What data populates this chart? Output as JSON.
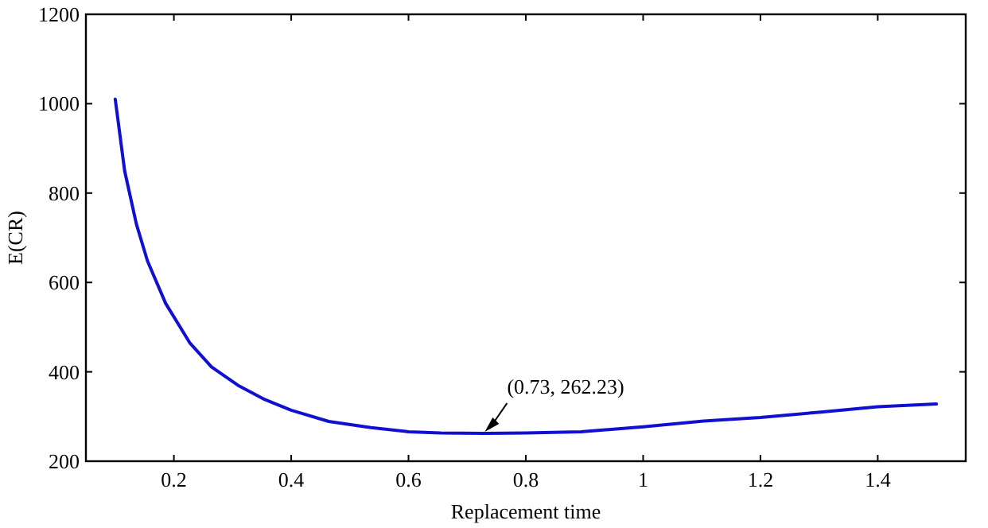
{
  "chart_data": {
    "type": "line",
    "xlabel": "Replacement time",
    "ylabel": "E(CR)",
    "xlim": [
      0.05,
      1.55
    ],
    "xticks": [
      0.2,
      0.4,
      0.6,
      0.8,
      {
        "value": 1,
        "label": "1"
      },
      1.2,
      1.4
    ],
    "ylim": [
      200,
      1200
    ],
    "yticks": [
      200,
      400,
      600,
      800,
      1000,
      1200
    ],
    "grid": false,
    "marker": "none",
    "line_style": "solid",
    "x": [
      0.1,
      0.116,
      0.136,
      0.155,
      0.186,
      0.227,
      0.264,
      0.309,
      0.355,
      0.4,
      0.464,
      0.536,
      0.6,
      0.655,
      0.73,
      0.8,
      0.894,
      1.0,
      1.103,
      1.2,
      1.303,
      1.4,
      1.5
    ],
    "series": [
      {
        "color": "#1010d0",
        "values": [
          1010,
          850,
          731,
          648,
          553,
          465,
          411,
          370,
          338,
          314,
          289,
          275,
          266,
          263,
          262.23,
          263,
          266,
          277,
          290,
          298,
          310,
          322,
          328
        ]
      }
    ],
    "annotations": [
      {
        "text": "(0.73, 262.23)",
        "x": 0.73,
        "y": 262.23
      }
    ]
  }
}
